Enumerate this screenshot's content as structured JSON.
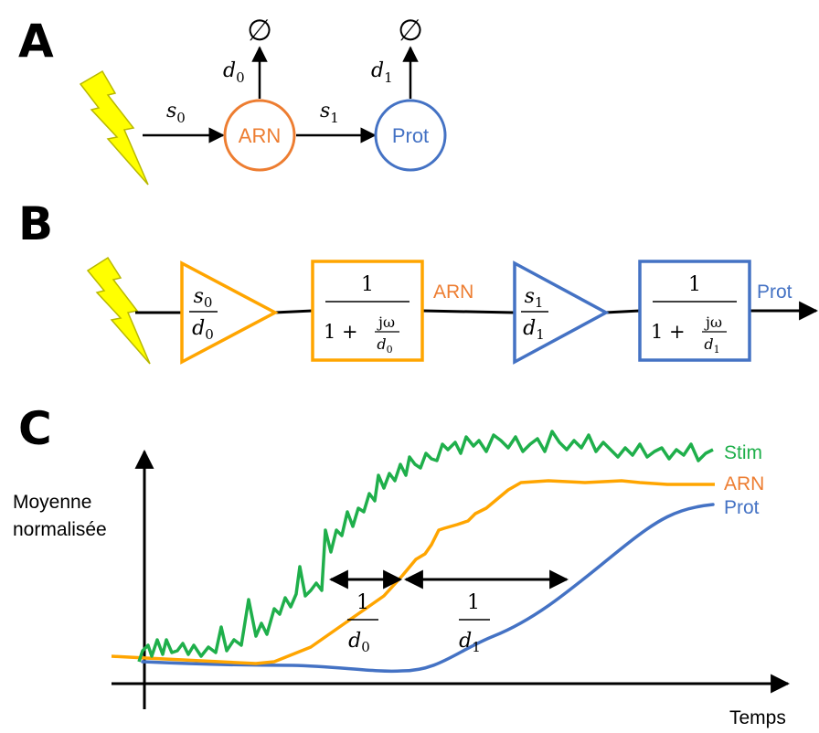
{
  "panels": {
    "a": "A",
    "b": "B",
    "c": "C"
  },
  "colors": {
    "arn": "#ED7D31",
    "prot": "#4472C4",
    "stim": "#1FAF4B",
    "amp_orange": "#FFA500",
    "lightning": "#FFFF00"
  },
  "panel_a": {
    "arn_label": "ARN",
    "prot_label": "Prot",
    "rate_s0": {
      "sym": "s",
      "sub": "0"
    },
    "rate_s1": {
      "sym": "s",
      "sub": "1"
    },
    "rate_d0": {
      "sym": "d",
      "sub": "0"
    },
    "rate_d1": {
      "sym": "d",
      "sub": "1"
    },
    "degradation_symbol": "∅"
  },
  "panel_b": {
    "gain0": {
      "num": "s",
      "num_sub": "0",
      "den": "d",
      "den_sub": "0"
    },
    "filter0": {
      "num": "1",
      "den_prefix": "1 + ",
      "frac_num": "jω",
      "frac_den": "d",
      "frac_den_sub": "0"
    },
    "arn_label": "ARN",
    "gain1": {
      "num": "s",
      "num_sub": "1",
      "den": "d",
      "den_sub": "1"
    },
    "filter1": {
      "num": "1",
      "den_prefix": "1 + ",
      "frac_num": "jω",
      "frac_den": "d",
      "frac_den_sub": "1"
    },
    "prot_label": "Prot"
  },
  "panel_c": {
    "ylabel_line1": "Moyenne",
    "ylabel_line2": "normalisée",
    "xlabel": "Temps",
    "delay0": {
      "num": "1",
      "den": "d",
      "den_sub": "0"
    },
    "delay1": {
      "num": "1",
      "den": "d",
      "den_sub": "1"
    },
    "legend": {
      "stim": "Stim",
      "arn": "ARN",
      "prot": "Prot"
    }
  }
}
